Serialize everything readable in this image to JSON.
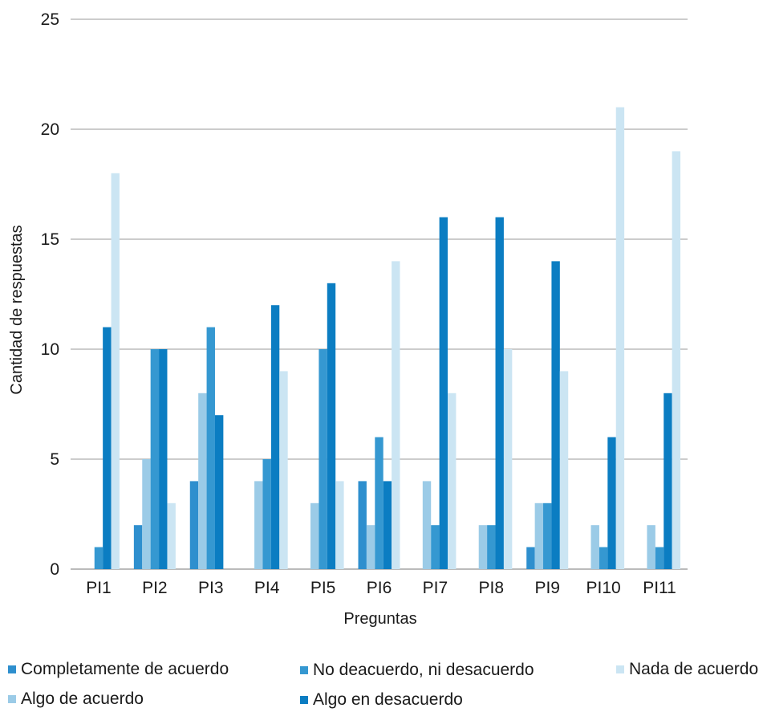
{
  "chart_data": {
    "type": "bar",
    "title": "",
    "xlabel": "Preguntas",
    "ylabel": "Cantidad de respuestas",
    "ylim": [
      0,
      25
    ],
    "yticks": [
      0,
      5,
      10,
      15,
      20,
      25
    ],
    "grid": true,
    "legend_position": "bottom",
    "categories": [
      "PI1",
      "PI2",
      "PI3",
      "PI4",
      "PI5",
      "PI6",
      "PI7",
      "PI8",
      "PI9",
      "PI10",
      "PI11"
    ],
    "series": [
      {
        "name": "Completamente de acuerdo",
        "color": "#2e8fce",
        "values": [
          0,
          2,
          4,
          0,
          0,
          4,
          0,
          0,
          1,
          0,
          0
        ]
      },
      {
        "name": "Algo de acuerdo",
        "color": "#9bcbe7",
        "values": [
          0,
          5,
          8,
          4,
          3,
          2,
          4,
          2,
          3,
          2,
          2
        ]
      },
      {
        "name": "No deacuerdo, ni desacuerdo",
        "color": "#3598d1",
        "values": [
          1,
          10,
          11,
          5,
          10,
          6,
          2,
          2,
          3,
          1,
          1
        ]
      },
      {
        "name": "Algo en desacuerdo",
        "color": "#0b7dc2",
        "values": [
          11,
          10,
          7,
          12,
          13,
          4,
          16,
          16,
          14,
          6,
          8
        ]
      },
      {
        "name": "Nada de acuerdo",
        "color": "#cbe5f3",
        "values": [
          18,
          3,
          0,
          9,
          4,
          14,
          8,
          10,
          9,
          21,
          19
        ]
      }
    ]
  }
}
